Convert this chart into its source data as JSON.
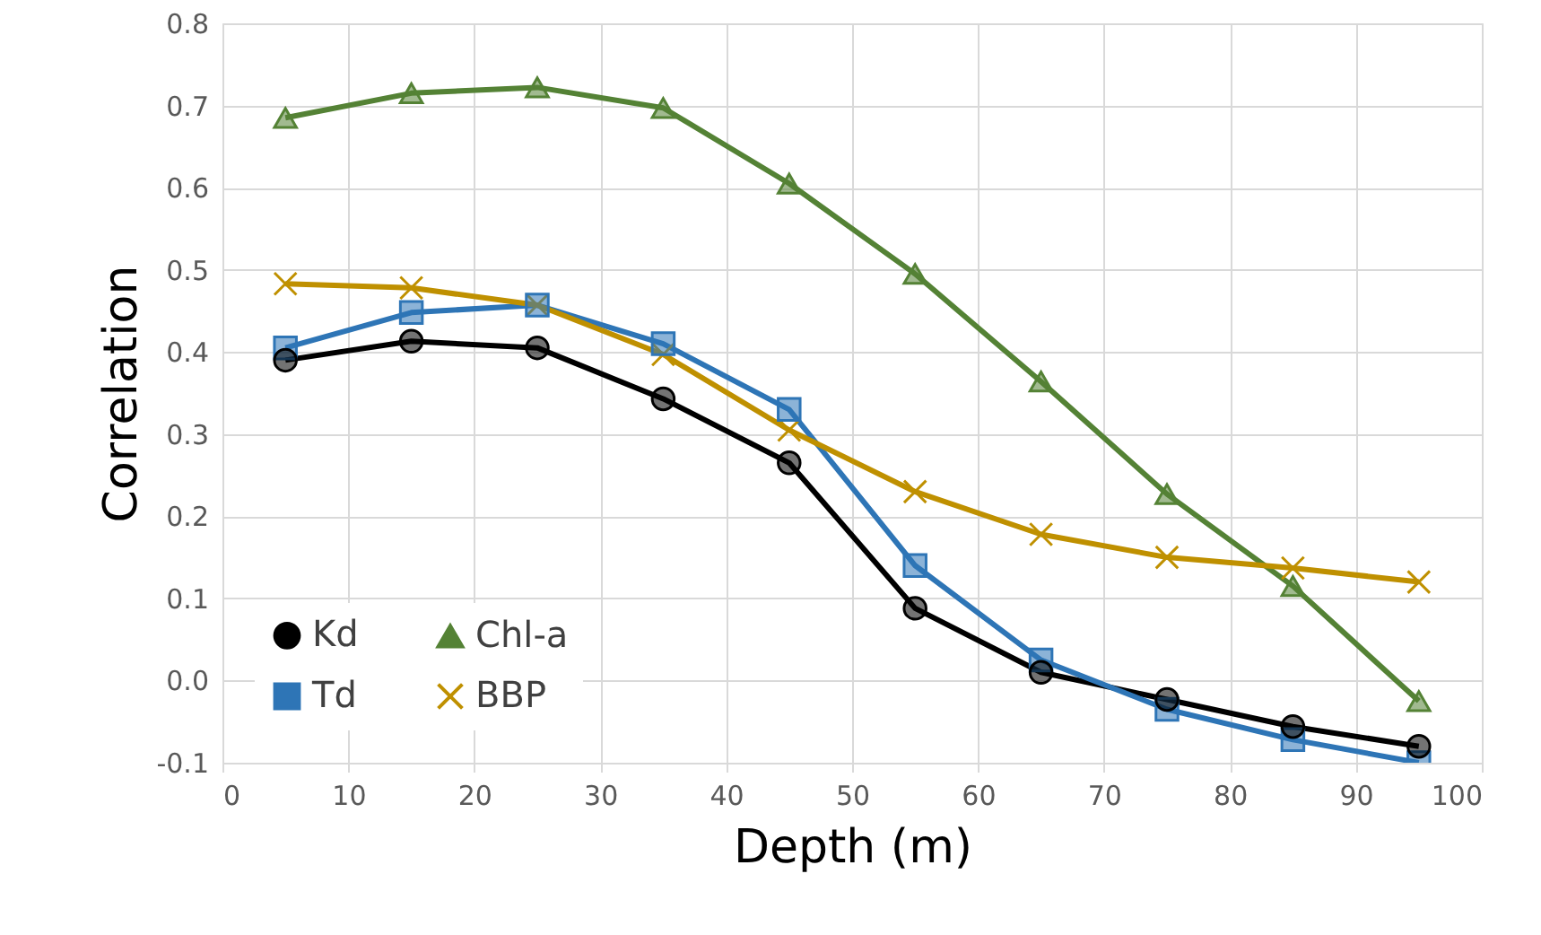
{
  "chart_data": {
    "type": "line",
    "xlabel": "Depth (m)",
    "ylabel": "Correlation",
    "x": [
      5,
      15,
      25,
      35,
      45,
      55,
      65,
      75,
      85,
      95
    ],
    "series": [
      {
        "name": "Kd",
        "color": "#000000",
        "marker": "circle",
        "values": [
          0.39,
          0.413,
          0.405,
          0.343,
          0.265,
          0.088,
          0.01,
          -0.023,
          -0.056,
          -0.08
        ]
      },
      {
        "name": "Td",
        "color": "#2e75b6",
        "marker": "square",
        "values": [
          0.405,
          0.448,
          0.457,
          0.41,
          0.33,
          0.14,
          0.025,
          -0.035,
          -0.072,
          -0.1
        ]
      },
      {
        "name": "Chl-a",
        "color": "#548235",
        "marker": "triangle",
        "values": [
          0.685,
          0.715,
          0.722,
          0.697,
          0.605,
          0.495,
          0.364,
          0.227,
          0.115,
          -0.025
        ]
      },
      {
        "name": "BBP",
        "color": "#bf9000",
        "marker": "cross",
        "values": [
          0.483,
          0.478,
          0.457,
          0.397,
          0.305,
          0.23,
          0.178,
          0.15,
          0.137,
          0.12
        ]
      }
    ],
    "xlim": [
      0,
      100
    ],
    "xticks": [
      0,
      10,
      20,
      30,
      40,
      50,
      60,
      70,
      80,
      90,
      100
    ],
    "ylim": [
      -0.1,
      0.8
    ],
    "yticks": [
      -0.1,
      {
        "value": 0,
        "label": "0.0"
      },
      0.1,
      0.2,
      0.3,
      0.4,
      0.5,
      0.6,
      0.7,
      0.8
    ],
    "grid": true,
    "legend": "bottom left",
    "line_style": "solid"
  }
}
